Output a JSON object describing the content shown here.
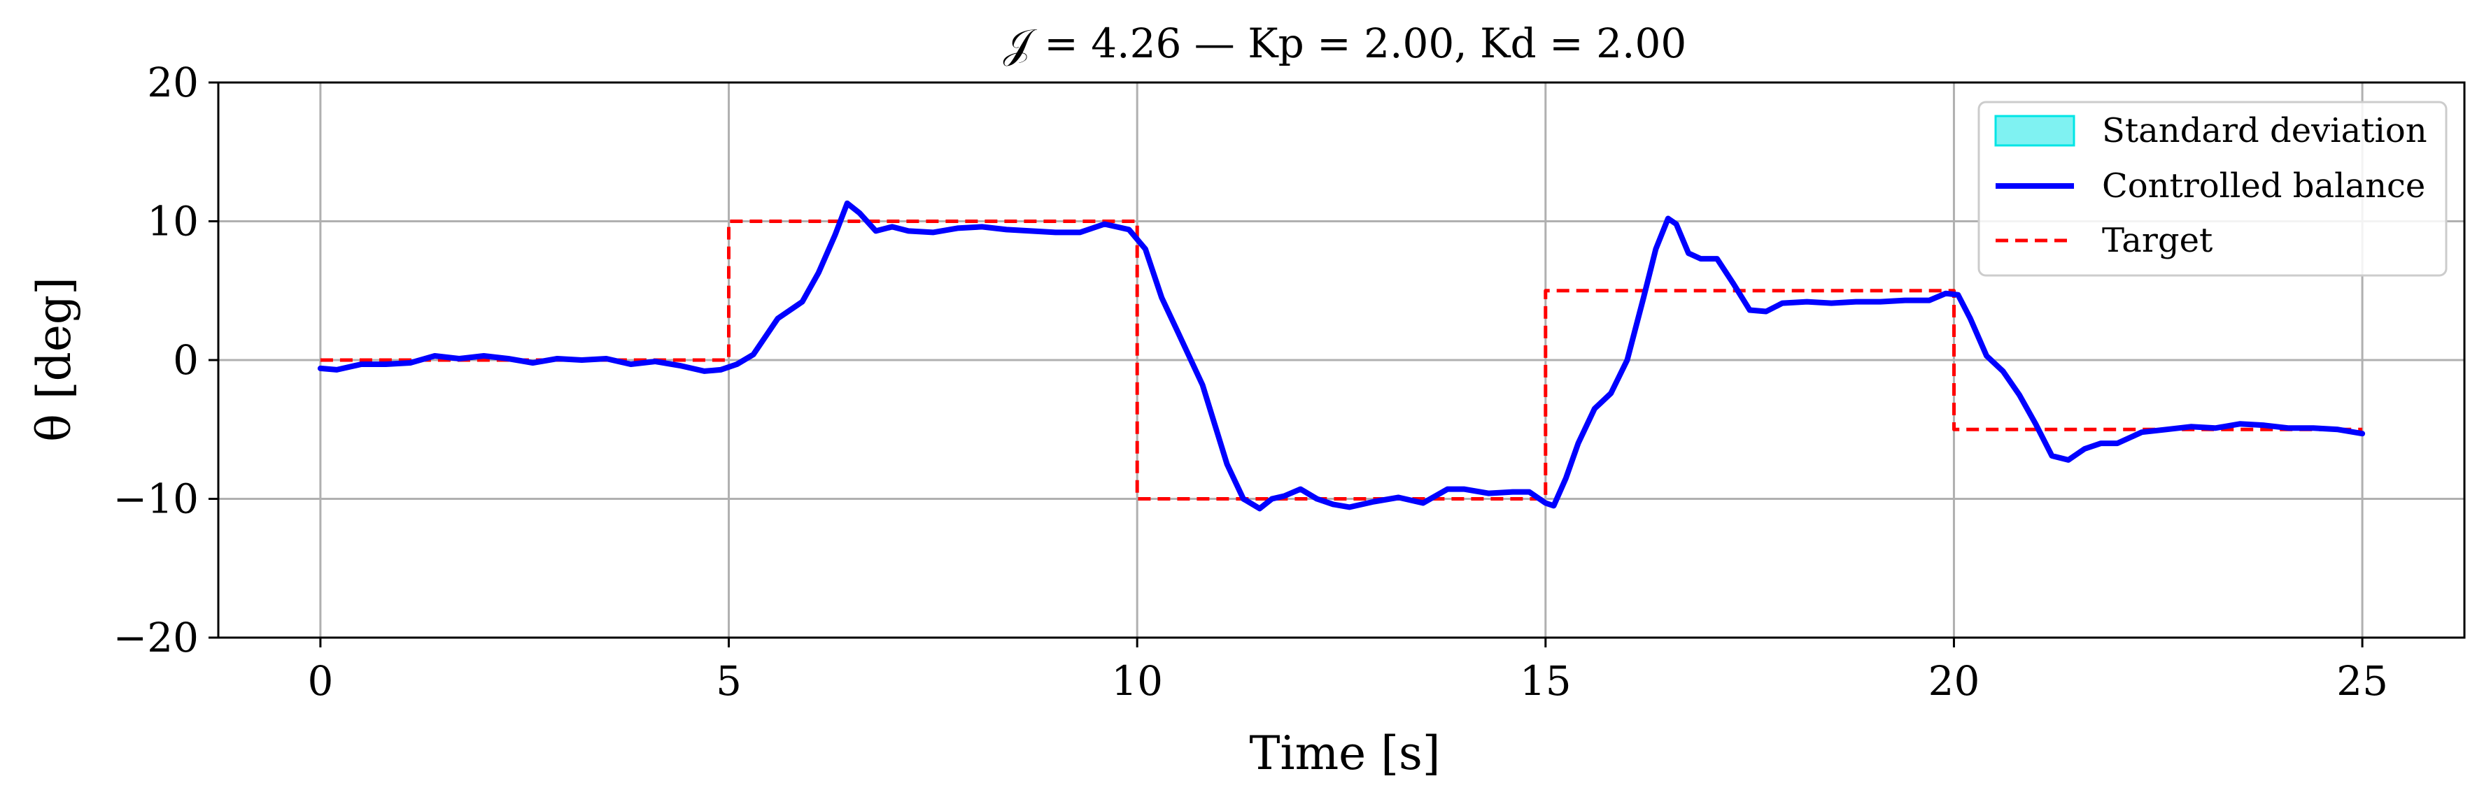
{
  "chart_data": {
    "type": "line",
    "title": "𝒥 = 4.26 — Kp = 2.00, Kd = 2.00",
    "xlabel": "Time [s]",
    "ylabel": "θ [deg]",
    "xlim": [
      -1.25,
      26.25
    ],
    "ylim": [
      -20,
      20
    ],
    "xticks": [
      0,
      5,
      10,
      15,
      20,
      25
    ],
    "yticks": [
      -20,
      -10,
      0,
      10,
      20
    ],
    "xtick_labels": [
      "0",
      "5",
      "10",
      "15",
      "20",
      "25"
    ],
    "ytick_labels": [
      "−20",
      "−10",
      "0",
      "10",
      "20"
    ],
    "grid": true,
    "legend_position": "top-right",
    "legend": [
      {
        "label": "Standard deviation",
        "kind": "patch",
        "color": "#00e5e5"
      },
      {
        "label": "Controlled balance",
        "kind": "solid",
        "color": "#0000ff"
      },
      {
        "label": "Target",
        "kind": "dashed",
        "color": "#ff0000"
      }
    ],
    "series": [
      {
        "name": "Controlled balance",
        "color": "#0000ff",
        "style": "solid",
        "x": [
          0,
          0.2,
          0.5,
          0.8,
          1.1,
          1.4,
          1.7,
          2.0,
          2.3,
          2.6,
          2.9,
          3.2,
          3.5,
          3.8,
          4.1,
          4.4,
          4.7,
          4.9,
          5.1,
          5.3,
          5.6,
          5.9,
          6.1,
          6.3,
          6.45,
          6.6,
          6.8,
          7.0,
          7.2,
          7.5,
          7.8,
          8.1,
          8.4,
          8.7,
          9.0,
          9.3,
          9.6,
          9.9,
          10.1,
          10.3,
          10.5,
          10.8,
          11.1,
          11.3,
          11.5,
          11.65,
          11.8,
          12.0,
          12.2,
          12.4,
          12.6,
          12.9,
          13.2,
          13.5,
          13.8,
          14.0,
          14.3,
          14.6,
          14.8,
          15.0,
          15.1,
          15.25,
          15.4,
          15.6,
          15.8,
          16.0,
          16.2,
          16.35,
          16.5,
          16.6,
          16.75,
          16.9,
          17.1,
          17.3,
          17.5,
          17.7,
          17.9,
          18.2,
          18.5,
          18.8,
          19.1,
          19.4,
          19.7,
          19.9,
          20.05,
          20.2,
          20.4,
          20.6,
          20.8,
          21.0,
          21.2,
          21.4,
          21.5,
          21.6,
          21.8,
          22.0,
          22.3,
          22.6,
          22.9,
          23.2,
          23.5,
          23.8,
          24.1,
          24.4,
          24.7,
          25.0
        ],
        "y": [
          -0.6,
          -0.7,
          -0.3,
          -0.3,
          -0.2,
          0.3,
          0.1,
          0.3,
          0.1,
          -0.2,
          0.1,
          0.0,
          0.1,
          -0.3,
          -0.1,
          -0.4,
          -0.8,
          -0.7,
          -0.3,
          0.4,
          3.0,
          4.2,
          6.3,
          9.0,
          11.3,
          10.6,
          9.3,
          9.6,
          9.3,
          9.2,
          9.5,
          9.6,
          9.4,
          9.3,
          9.2,
          9.2,
          9.8,
          9.4,
          8.0,
          4.5,
          2.0,
          -1.8,
          -7.5,
          -10.0,
          -10.7,
          -10.0,
          -9.8,
          -9.3,
          -10.0,
          -10.4,
          -10.6,
          -10.2,
          -9.9,
          -10.3,
          -9.3,
          -9.3,
          -9.6,
          -9.5,
          -9.5,
          -10.3,
          -10.5,
          -8.5,
          -6.0,
          -3.5,
          -2.4,
          0.0,
          4.5,
          8.0,
          10.2,
          9.8,
          7.7,
          7.3,
          7.3,
          5.5,
          3.6,
          3.5,
          4.1,
          4.2,
          4.1,
          4.2,
          4.2,
          4.3,
          4.3,
          4.8,
          4.7,
          3.0,
          0.3,
          -0.8,
          -2.5,
          -4.6,
          -6.9,
          -7.2,
          -6.8,
          -6.4,
          -6.0,
          -6.0,
          -5.2,
          -5.0,
          -4.8,
          -4.9,
          -4.6,
          -4.7,
          -4.9,
          -4.9,
          -5.0,
          -5.3
        ]
      },
      {
        "name": "Target",
        "color": "#ff0000",
        "style": "dashed",
        "x": [
          0,
          5,
          5,
          10,
          10,
          15,
          15,
          20,
          20,
          25
        ],
        "y": [
          0,
          0,
          10,
          10,
          -10,
          -10,
          5,
          5,
          -5,
          -5
        ]
      }
    ]
  }
}
